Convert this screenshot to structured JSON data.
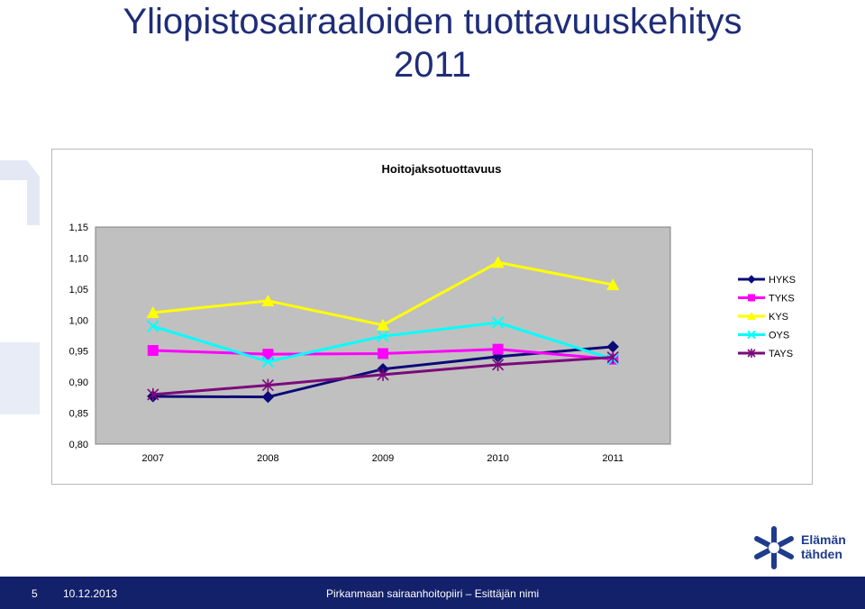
{
  "slide": {
    "title_line1": "Yliopistosairaaloiden tuottavuuskehitys",
    "title_line2": "2011"
  },
  "logo": {
    "line1": "Elämän",
    "line2": "tähden"
  },
  "footer": {
    "page_number": "5",
    "date": "10.12.2013",
    "center_text": "Pirkanmaan sairaanhoitopiiri – Esittäjän nimi"
  },
  "colors": {
    "title": "#1f2d78",
    "footer_bg": "#13216a",
    "plot_bg": "#c0c0c0"
  },
  "chart_data": {
    "type": "line",
    "title": "Hoitojaksotuottavuus",
    "xlabel": "",
    "ylabel": "",
    "categories": [
      "2007",
      "2008",
      "2009",
      "2010",
      "2011"
    ],
    "ylim": [
      0.8,
      1.15
    ],
    "ytick_labels": [
      "1,15",
      "1,10",
      "1,05",
      "1,00",
      "0,95",
      "0,90",
      "0,85",
      "0,80"
    ],
    "ytick_values": [
      1.15,
      1.1,
      1.05,
      1.0,
      0.95,
      0.9,
      0.85,
      0.8
    ],
    "grid": false,
    "legend_position": "right",
    "series": [
      {
        "name": "HYKS",
        "color": "#0a0a78",
        "marker": "diamond",
        "values": [
          0.877,
          0.876,
          0.921,
          0.941,
          0.957
        ]
      },
      {
        "name": "TYKS",
        "color": "#ff00ff",
        "marker": "square",
        "values": [
          0.951,
          0.945,
          0.946,
          0.953,
          0.937
        ]
      },
      {
        "name": "KYS",
        "color": "#ffff00",
        "marker": "triangle",
        "values": [
          1.012,
          1.031,
          0.992,
          1.093,
          1.057
        ]
      },
      {
        "name": "OYS",
        "color": "#00ffff",
        "marker": "x",
        "values": [
          0.99,
          0.933,
          0.974,
          0.996,
          0.937
        ]
      },
      {
        "name": "TAYS",
        "color": "#7a0a7a",
        "marker": "asterisk",
        "values": [
          0.88,
          0.895,
          0.912,
          0.928,
          0.94
        ]
      }
    ]
  }
}
